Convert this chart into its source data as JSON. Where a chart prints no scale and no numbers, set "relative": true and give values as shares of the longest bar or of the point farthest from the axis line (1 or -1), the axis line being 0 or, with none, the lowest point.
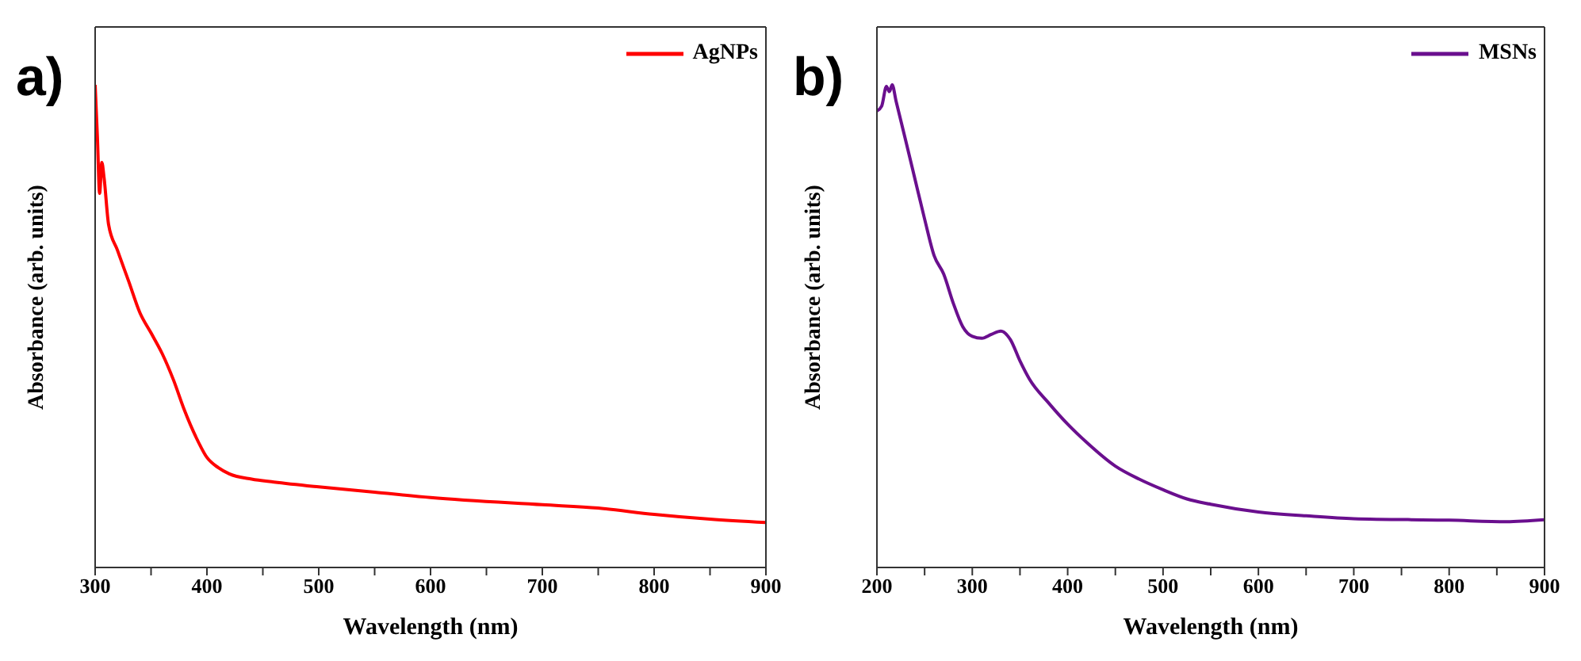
{
  "chart_data": [
    {
      "type": "line",
      "relative": true,
      "xlabel": "Wavelength (nm)",
      "ylabel": "Absorbance (arb. units)",
      "annotations": [
        "a)"
      ],
      "legend": "top right",
      "xlim": [
        300,
        900
      ],
      "xticks": [
        300,
        {
          "value": 350,
          "label": null
        },
        400,
        {
          "value": 450,
          "label": null
        },
        500,
        {
          "value": 550,
          "label": null
        },
        600,
        {
          "value": 650,
          "label": null
        },
        700,
        {
          "value": 750,
          "label": null
        },
        800,
        {
          "value": 850,
          "label": null
        },
        900
      ],
      "series": [
        {
          "name": "AgNPs",
          "color": "#ff0000",
          "x": [
            300,
            302,
            304,
            306,
            308,
            312,
            320,
            330,
            340,
            350,
            360,
            370,
            380,
            390,
            400,
            410,
            420,
            440,
            460,
            500,
            550,
            600,
            700,
            750,
            800,
            850,
            900
          ],
          "values": [
            1.0,
            0.893,
            0.775,
            0.839,
            0.807,
            0.711,
            0.657,
            0.593,
            0.528,
            0.486,
            0.443,
            0.389,
            0.325,
            0.271,
            0.228,
            0.207,
            0.194,
            0.183,
            0.177,
            0.167,
            0.156,
            0.145,
            0.13,
            0.123,
            0.11,
            0.1,
            0.093
          ]
        }
      ]
    },
    {
      "type": "line",
      "relative": true,
      "xlabel": "Wavelength (nm)",
      "ylabel": "Absorbance (arb. units)",
      "annotations": [
        "b)"
      ],
      "legend": "top right",
      "xlim": [
        200,
        900
      ],
      "xticks": [
        200,
        {
          "value": 250,
          "label": null
        },
        300,
        {
          "value": 350,
          "label": null
        },
        400,
        {
          "value": 450,
          "label": null
        },
        500,
        {
          "value": 550,
          "label": null
        },
        600,
        {
          "value": 650,
          "label": null
        },
        700,
        {
          "value": 750,
          "label": null
        },
        800,
        {
          "value": 850,
          "label": null
        },
        900
      ],
      "series": [
        {
          "name": "MSNs",
          "color": "#6a0f8e",
          "x": [
            200,
            205,
            210,
            213,
            216,
            220,
            230,
            240,
            250,
            260,
            270,
            280,
            290,
            300,
            310,
            320,
            330,
            340,
            350,
            360,
            380,
            400,
            420,
            450,
            475,
            500,
            525,
            550,
            600,
            650,
            700,
            800,
            860,
            900
          ],
          "values": [
            0.946,
            0.956,
            0.997,
            0.986,
            1.0,
            0.967,
            0.886,
            0.804,
            0.722,
            0.646,
            0.608,
            0.548,
            0.499,
            0.479,
            0.475,
            0.483,
            0.49,
            0.472,
            0.428,
            0.39,
            0.341,
            0.297,
            0.259,
            0.21,
            0.183,
            0.161,
            0.142,
            0.131,
            0.115,
            0.107,
            0.101,
            0.098,
            0.095,
            0.099
          ]
        }
      ]
    }
  ]
}
